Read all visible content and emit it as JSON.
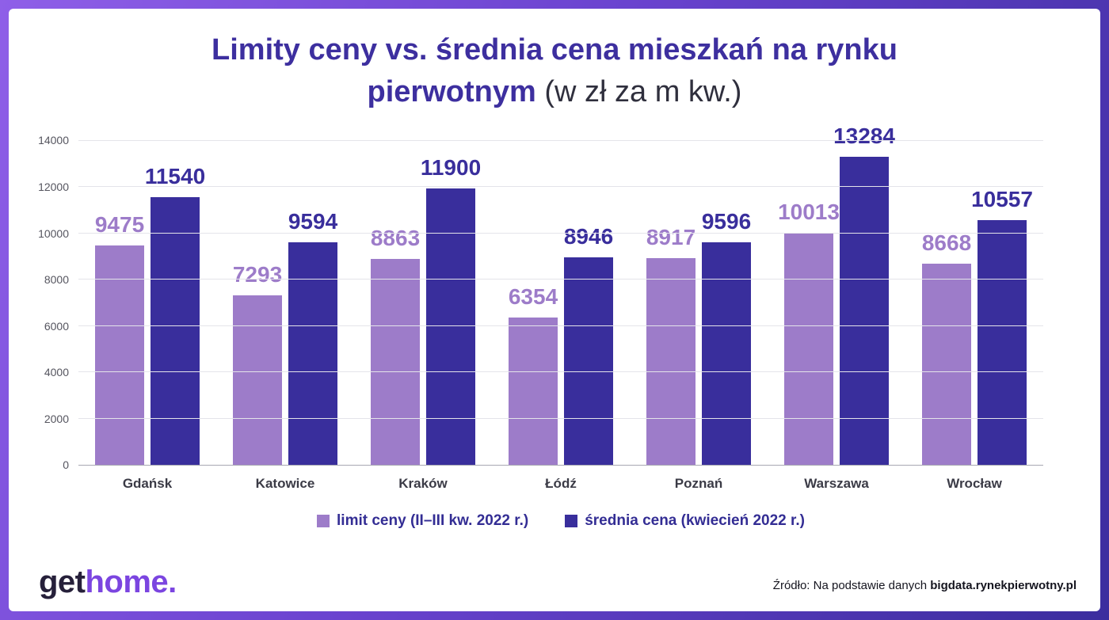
{
  "title": {
    "line1": "Limity ceny vs. średnia cena mieszkań na rynku",
    "line2_bold": "pierwotnym",
    "line2_regular": "(w zł za m kw.)"
  },
  "chart_data": {
    "type": "bar",
    "title": "Limity ceny vs. średnia cena mieszkań na rynku pierwotnym (w zł za m kw.)",
    "categories": [
      "Gdańsk",
      "Katowice",
      "Kraków",
      "Łódź",
      "Poznań",
      "Warszawa",
      "Wrocław"
    ],
    "series": [
      {
        "name": "limit ceny (II–III kw. 2022 r.)",
        "color": "#9d7cc9",
        "values": [
          9475,
          7293,
          8863,
          6354,
          8917,
          10013,
          8668
        ]
      },
      {
        "name": "średnia cena (kwiecień 2022 r.)",
        "color": "#392e9c",
        "values": [
          11540,
          9594,
          11900,
          8946,
          9596,
          13284,
          10557
        ]
      }
    ],
    "ylim": [
      0,
      14000
    ],
    "ytick_step": 2000,
    "grid": true,
    "legend_position": "bottom"
  },
  "footer": {
    "logo": {
      "part1": "get",
      "part2": "home."
    },
    "source": {
      "regular": "Źródło: Na podstawie danych ",
      "bold": "bigdata.rynekpierwotny.pl"
    }
  },
  "colors": {
    "frame_gradient_start": "#8f5fe8",
    "frame_gradient_end": "#3b2d9e",
    "title_text": "#3d2f9f",
    "series_limit": "#9d7cc9",
    "series_average": "#392e9c",
    "x_axis_labels": "#3b3b46",
    "legend_text": "#332d94",
    "logo_home": "#7b45e0"
  }
}
